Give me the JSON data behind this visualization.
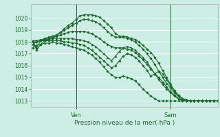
{
  "title": "Pression niveau de la mer( hPa )",
  "bg_color": "#cceee4",
  "grid_color": "#ffffff",
  "line_color": "#1a6b2a",
  "ylim": [
    1012.5,
    1021.2
  ],
  "yticks": [
    1013,
    1014,
    1015,
    1016,
    1017,
    1018,
    1019,
    1020
  ],
  "xlim": [
    -0.5,
    47
  ],
  "ven_x": 11,
  "sam_x": 35,
  "series": [
    [
      1018.0,
      1017.3,
      1017.8,
      1018.1,
      1018.2,
      1018.3,
      1018.5,
      1018.8,
      1019.1,
      1019.4,
      1019.6,
      1019.9,
      1020.2,
      1020.3,
      1020.3,
      1020.3,
      1020.2,
      1020.1,
      1019.8,
      1019.5,
      1019.2,
      1018.7,
      1018.5,
      1018.5,
      1018.4,
      1018.3,
      1018.2,
      1018.0,
      1017.7,
      1017.4,
      1017.1,
      1016.7,
      1016.2,
      1015.6,
      1015.0,
      1014.4,
      1013.9,
      1013.5,
      1013.2,
      1013.1,
      1013.0,
      1013.0,
      1013.0,
      1013.0,
      1013.0,
      1013.0,
      1013.0,
      1013.0
    ],
    [
      1018.0,
      1017.5,
      1018.1,
      1018.3,
      1018.4,
      1018.5,
      1018.6,
      1018.8,
      1019.0,
      1019.2,
      1019.4,
      1019.6,
      1019.8,
      1019.9,
      1019.9,
      1019.8,
      1019.7,
      1019.5,
      1019.2,
      1018.9,
      1018.6,
      1018.4,
      1018.4,
      1018.4,
      1018.3,
      1018.2,
      1018.0,
      1017.7,
      1017.4,
      1017.0,
      1016.6,
      1016.1,
      1015.5,
      1015.0,
      1014.5,
      1014.1,
      1013.7,
      1013.4,
      1013.2,
      1013.1,
      1013.0,
      1013.0,
      1013.0,
      1013.0,
      1013.0,
      1013.0,
      1013.0,
      1013.0
    ],
    [
      1018.0,
      1018.0,
      1018.1,
      1018.2,
      1018.3,
      1018.4,
      1018.5,
      1018.6,
      1018.7,
      1018.8,
      1018.9,
      1018.9,
      1018.9,
      1018.9,
      1018.8,
      1018.7,
      1018.5,
      1018.3,
      1018.0,
      1017.8,
      1017.6,
      1017.5,
      1017.5,
      1017.5,
      1017.4,
      1017.3,
      1017.1,
      1016.8,
      1016.5,
      1016.1,
      1015.7,
      1015.3,
      1014.8,
      1014.4,
      1014.0,
      1013.7,
      1013.4,
      1013.2,
      1013.1,
      1013.0,
      1013.0,
      1013.0,
      1013.0,
      1013.0,
      1013.0,
      1013.0,
      1013.0,
      1013.0
    ],
    [
      1018.1,
      1018.1,
      1018.2,
      1018.2,
      1018.2,
      1018.3,
      1018.3,
      1018.3,
      1018.3,
      1018.3,
      1018.3,
      1018.2,
      1018.2,
      1018.1,
      1018.0,
      1017.8,
      1017.6,
      1017.3,
      1017.0,
      1016.7,
      1016.4,
      1016.8,
      1017.2,
      1017.5,
      1017.6,
      1017.5,
      1017.3,
      1017.0,
      1016.7,
      1016.3,
      1015.8,
      1015.3,
      1015.5,
      1015.3,
      1014.8,
      1014.3,
      1013.8,
      1013.4,
      1013.2,
      1013.1,
      1013.0,
      1013.0,
      1013.0,
      1013.0,
      1013.0,
      1013.0,
      1013.0,
      1013.0
    ],
    [
      1017.8,
      1018.0,
      1018.1,
      1018.1,
      1018.1,
      1018.1,
      1018.1,
      1018.1,
      1018.0,
      1018.0,
      1017.9,
      1017.9,
      1017.8,
      1017.7,
      1017.5,
      1017.3,
      1017.0,
      1016.7,
      1016.4,
      1016.1,
      1015.8,
      1016.0,
      1016.4,
      1016.8,
      1017.0,
      1016.9,
      1016.7,
      1016.4,
      1016.0,
      1015.6,
      1015.1,
      1015.3,
      1015.0,
      1014.6,
      1014.2,
      1013.8,
      1013.5,
      1013.2,
      1013.0,
      1013.0,
      1013.0,
      1013.0,
      1013.0,
      1013.0,
      1013.0,
      1013.0,
      1013.0,
      1013.0
    ],
    [
      1017.5,
      1017.7,
      1017.8,
      1017.9,
      1017.9,
      1018.0,
      1017.9,
      1017.9,
      1017.8,
      1017.7,
      1017.6,
      1017.5,
      1017.4,
      1017.3,
      1017.1,
      1016.9,
      1016.6,
      1016.3,
      1015.9,
      1015.5,
      1015.2,
      1015.0,
      1015.0,
      1015.1,
      1015.0,
      1014.9,
      1014.7,
      1014.4,
      1014.0,
      1013.7,
      1013.4,
      1013.2,
      1013.0,
      1013.0,
      1013.0,
      1013.0,
      1013.0,
      1013.0,
      1013.0,
      1013.0,
      1013.0,
      1013.0,
      1013.0,
      1013.0,
      1013.0,
      1013.0,
      1013.0,
      1013.0
    ]
  ],
  "markers": [
    "D",
    "D",
    "D",
    "^",
    "D",
    "D"
  ],
  "markersizes": [
    1.8,
    1.8,
    1.8,
    2.2,
    1.8,
    1.8
  ],
  "linewidths": [
    0.8,
    0.8,
    0.8,
    0.8,
    0.8,
    0.8
  ]
}
